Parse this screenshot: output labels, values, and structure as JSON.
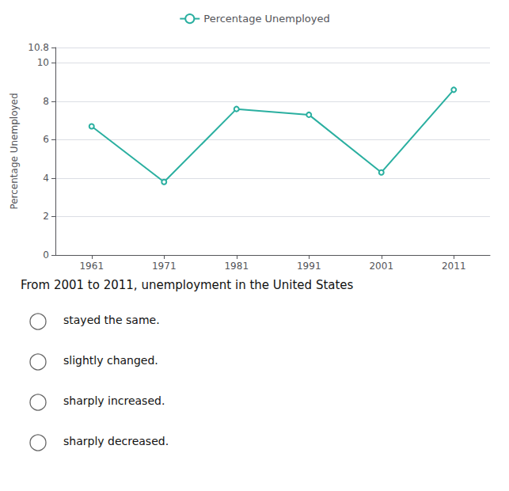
{
  "chart_data": {
    "type": "line",
    "x": [
      1961,
      1971,
      1981,
      1991,
      2001,
      2011
    ],
    "series": [
      {
        "name": "Percentage Unemployed",
        "color": "#2aafa0",
        "values": [
          6.7,
          3.8,
          7.6,
          7.3,
          4.3,
          8.6
        ]
      }
    ],
    "ylabel": "Percentage Unemployed",
    "xlim": [
      1956,
      2016
    ],
    "xticks": [
      1961,
      1971,
      1981,
      1991,
      2001,
      2011
    ],
    "ylim": [
      0,
      10.8
    ],
    "yticks": [
      0,
      2,
      4,
      6,
      8,
      10
    ],
    "grid": true,
    "legend": "top",
    "annotations": [
      "From 2001 to 2011, unemployment in the United States",
      "stayed the same.",
      "slightly changed.",
      "sharply increased.",
      "sharply decreased."
    ]
  }
}
